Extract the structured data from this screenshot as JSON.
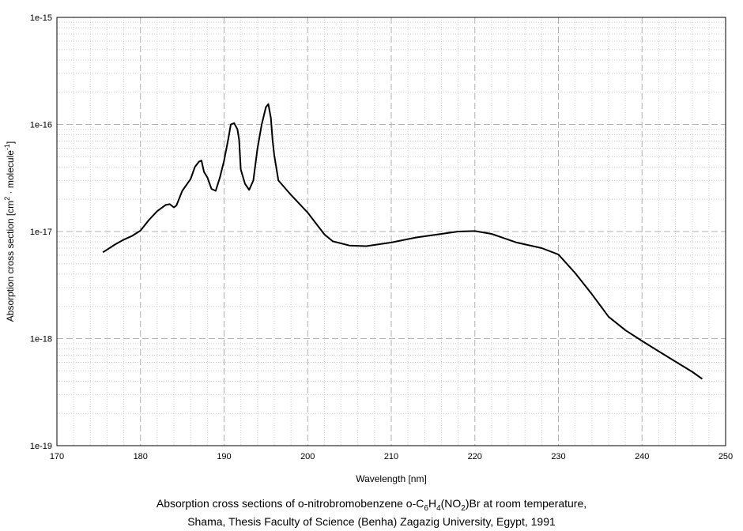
{
  "chart_data": {
    "type": "line",
    "xlabel": "Wavelength [nm]",
    "ylabel_main": "Absorption cross section [cm",
    "ylabel_sup1": "2",
    "ylabel_mid": " · molecule",
    "ylabel_sup2": "-1",
    "ylabel_end": "]",
    "xlim": [
      170,
      250
    ],
    "ylim": [
      1e-19,
      1e-15
    ],
    "yscale": "log",
    "grid": true,
    "x_ticks": [
      "170",
      "180",
      "190",
      "200",
      "210",
      "220",
      "230",
      "240",
      "250"
    ],
    "y_ticks": [
      "1e-15",
      "1e-16",
      "1e-17",
      "1e-18",
      "1e-19"
    ],
    "series": [
      {
        "x": [
          175.5,
          177,
          178,
          179,
          180,
          181,
          182,
          183,
          183.5,
          184,
          184.3,
          185,
          186,
          186.5,
          187,
          187.3,
          187.6,
          188,
          188.5,
          189,
          189.5,
          190,
          190.5,
          190.8,
          191.2,
          191.6,
          191.8,
          192,
          192.5,
          193,
          193.5,
          194,
          194.5,
          195,
          195.3,
          195.6,
          195.8,
          196,
          196.5,
          198,
          200,
          202,
          203,
          205,
          207,
          210,
          213,
          216,
          218,
          220,
          222,
          225,
          228,
          230,
          232,
          234,
          236,
          238,
          240,
          242,
          244,
          246,
          247.2
        ],
        "y": [
          6.4e-18,
          7.6e-18,
          8.4e-18,
          9.1e-18,
          1.02e-17,
          1.28e-17,
          1.55e-17,
          1.77e-17,
          1.8e-17,
          1.68e-17,
          1.75e-17,
          2.4e-17,
          3.1e-17,
          4e-17,
          4.5e-17,
          4.6e-17,
          3.6e-17,
          3.2e-17,
          2.5e-17,
          2.4e-17,
          3.2e-17,
          4.6e-17,
          7.3e-17,
          1e-16,
          1.03e-16,
          9e-17,
          7.2e-17,
          3.8e-17,
          2.8e-17,
          2.45e-17,
          3e-17,
          6e-17,
          1e-16,
          1.45e-16,
          1.55e-16,
          1.15e-16,
          7.2e-17,
          5.2e-17,
          3e-17,
          2.2e-17,
          1.5e-17,
          9.4e-18,
          8.1e-18,
          7.4e-18,
          7.3e-18,
          7.9e-18,
          8.8e-18,
          9.5e-18,
          1e-17,
          1.01e-17,
          9.5e-18,
          7.9e-18,
          7e-18,
          6.1e-18,
          4.1e-18,
          2.6e-18,
          1.6e-18,
          1.2e-18,
          9.5e-19,
          7.6e-19,
          6.1e-19,
          4.9e-19,
          4.2e-19
        ]
      }
    ]
  },
  "caption": {
    "line1_a": "Absorption cross sections of o-nitrobromobenzene o-C",
    "line1_sub1": "6",
    "line1_b": "H",
    "line1_sub2": "4",
    "line1_c": "(NO",
    "line1_sub3": "2",
    "line1_d": ")Br at room temperature,",
    "line2": "Shama, Thesis Faculty of Science (Benha) Zagazig University, Egypt, 1991"
  }
}
